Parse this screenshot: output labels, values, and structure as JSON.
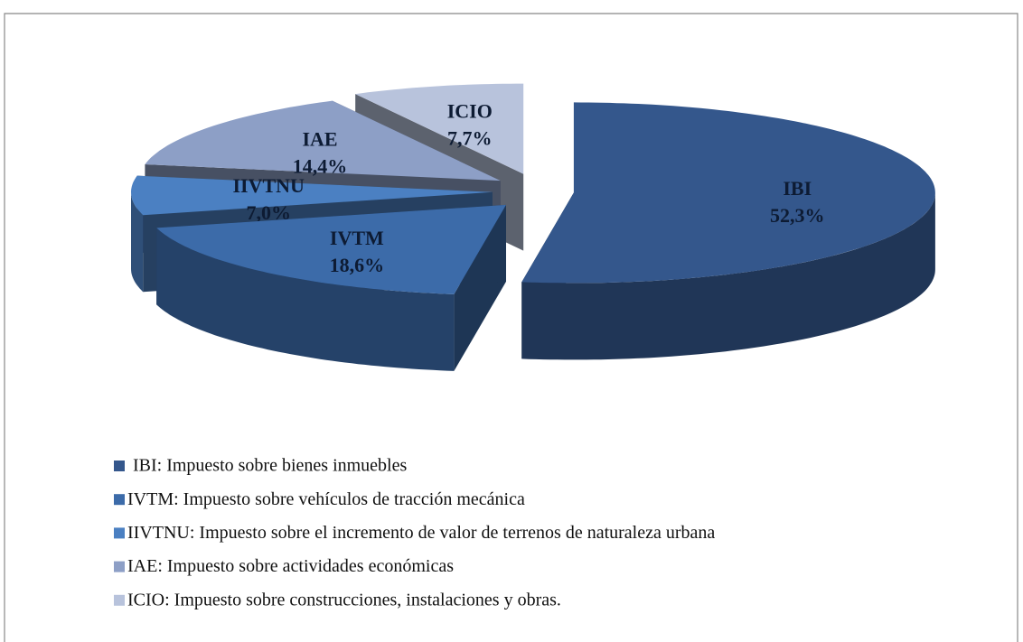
{
  "chart_data": {
    "type": "pie",
    "categories": [
      "IBI",
      "IVTM",
      "IIVTNU",
      "IAE",
      "ICIO"
    ],
    "values": [
      52.3,
      18.6,
      7.0,
      14.4,
      7.7
    ],
    "value_labels": [
      "52,3%",
      "18,6%",
      "7,0%",
      "14,4%",
      "7,7%"
    ],
    "colors": [
      "#34578c",
      "#3c6ba9",
      "#4b80c2",
      "#8d9fc6",
      "#b8c3dc"
    ],
    "legend": [
      "IBI: Impuesto sobre bienes inmuebles",
      "IVTM: Impuesto sobre vehículos de tracción mecánica",
      "IIVTNU: Impuesto sobre el incremento de valor de terrenos de naturaleza urbana",
      "IAE: Impuesto sobre actividades económicas",
      "ICIO: Impuesto sobre construcciones, instalaciones y obras."
    ]
  }
}
